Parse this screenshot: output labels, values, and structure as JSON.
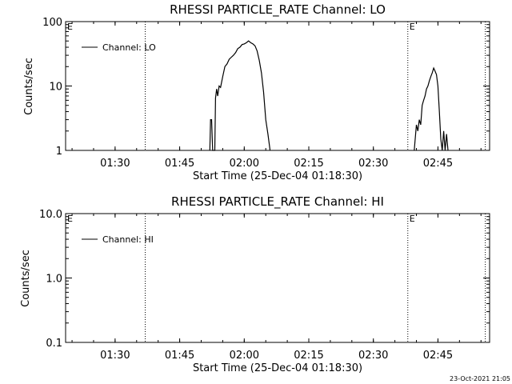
{
  "chart_data": [
    {
      "type": "line",
      "title": "RHESSI PARTICLE_RATE Channel: LO",
      "xlabel": "Start Time (25-Dec-04 01:18:30)",
      "ylabel": "Counts/sec",
      "yscale": "log",
      "ylim": [
        1,
        100
      ],
      "xlim": [
        "01:18:30",
        "02:57:00"
      ],
      "x_ticks": [
        "01:30",
        "01:45",
        "02:00",
        "02:15",
        "02:30",
        "02:45"
      ],
      "y_ticks": [
        "1",
        "10",
        "100"
      ],
      "legend": {
        "entries": [
          "Channel: LO"
        ],
        "placement": "top-left"
      },
      "markers": [
        {
          "label": "E",
          "x": "01:18:30"
        },
        {
          "label": "",
          "x": "01:37:00"
        },
        {
          "label": "E",
          "x": "02:38:00"
        },
        {
          "label": "",
          "x": "02:56:00"
        }
      ],
      "series": [
        {
          "name": "Channel: LO",
          "points": [
            [
              "01:52:00",
              1
            ],
            [
              "01:52:10",
              3
            ],
            [
              "01:52:25",
              3
            ],
            [
              "01:52:40",
              1
            ],
            [
              "01:53:10",
              1
            ],
            [
              "01:53:20",
              6.5
            ],
            [
              "01:53:35",
              9
            ],
            [
              "01:53:50",
              7
            ],
            [
              "01:54:10",
              10
            ],
            [
              "01:54:30",
              9.5
            ],
            [
              "01:55:00",
              14
            ],
            [
              "01:55:30",
              20
            ],
            [
              "01:56:00",
              22
            ],
            [
              "01:56:30",
              26
            ],
            [
              "01:57:00",
              28
            ],
            [
              "01:57:30",
              30
            ],
            [
              "01:58:00",
              33
            ],
            [
              "01:58:30",
              38
            ],
            [
              "01:59:00",
              40
            ],
            [
              "01:59:30",
              44
            ],
            [
              "02:00:00",
              45
            ],
            [
              "02:00:30",
              47
            ],
            [
              "02:01:00",
              50
            ],
            [
              "02:01:30",
              47
            ],
            [
              "02:02:00",
              45
            ],
            [
              "02:02:30",
              42
            ],
            [
              "02:03:00",
              35
            ],
            [
              "02:03:30",
              25
            ],
            [
              "02:04:00",
              16
            ],
            [
              "02:04:30",
              8
            ],
            [
              "02:05:00",
              3
            ],
            [
              "02:05:30",
              1.8
            ],
            [
              "02:06:00",
              1
            ]
          ]
        },
        {
          "name": "Channel: LO",
          "points": [
            [
              "02:39:30",
              1
            ],
            [
              "02:40:00",
              2.5
            ],
            [
              "02:40:20",
              2
            ],
            [
              "02:40:40",
              3
            ],
            [
              "02:41:00",
              2.5
            ],
            [
              "02:41:20",
              5
            ],
            [
              "02:41:40",
              6
            ],
            [
              "02:42:00",
              7
            ],
            [
              "02:42:20",
              9
            ],
            [
              "02:42:40",
              10
            ],
            [
              "02:43:00",
              12
            ],
            [
              "02:43:20",
              14
            ],
            [
              "02:43:40",
              16
            ],
            [
              "02:44:00",
              19
            ],
            [
              "02:44:20",
              17
            ],
            [
              "02:44:40",
              15
            ],
            [
              "02:45:00",
              10
            ],
            [
              "02:45:20",
              4
            ],
            [
              "02:45:40",
              1.5
            ],
            [
              "02:46:00",
              1
            ],
            [
              "02:46:20",
              2
            ],
            [
              "02:46:40",
              1
            ],
            [
              "02:47:00",
              1.8
            ],
            [
              "02:47:20",
              1
            ]
          ]
        }
      ]
    },
    {
      "type": "line",
      "title": "RHESSI PARTICLE_RATE Channel: HI",
      "xlabel": "Start Time (25-Dec-04 01:18:30)",
      "ylabel": "Counts/sec",
      "yscale": "log",
      "ylim": [
        0.1,
        10
      ],
      "xlim": [
        "01:18:30",
        "02:57:00"
      ],
      "x_ticks": [
        "01:30",
        "01:45",
        "02:00",
        "02:15",
        "02:30",
        "02:45"
      ],
      "y_ticks": [
        "0.1",
        "1.0",
        "10.0"
      ],
      "legend": {
        "entries": [
          "Channel: HI"
        ],
        "placement": "top-left"
      },
      "markers": [
        {
          "label": "E",
          "x": "01:18:30"
        },
        {
          "label": "",
          "x": "01:37:00"
        },
        {
          "label": "E",
          "x": "02:38:00"
        },
        {
          "label": "",
          "x": "02:56:00"
        }
      ],
      "series": []
    }
  ],
  "footer": {
    "timestamp": "23-Oct-2021 21:05"
  }
}
